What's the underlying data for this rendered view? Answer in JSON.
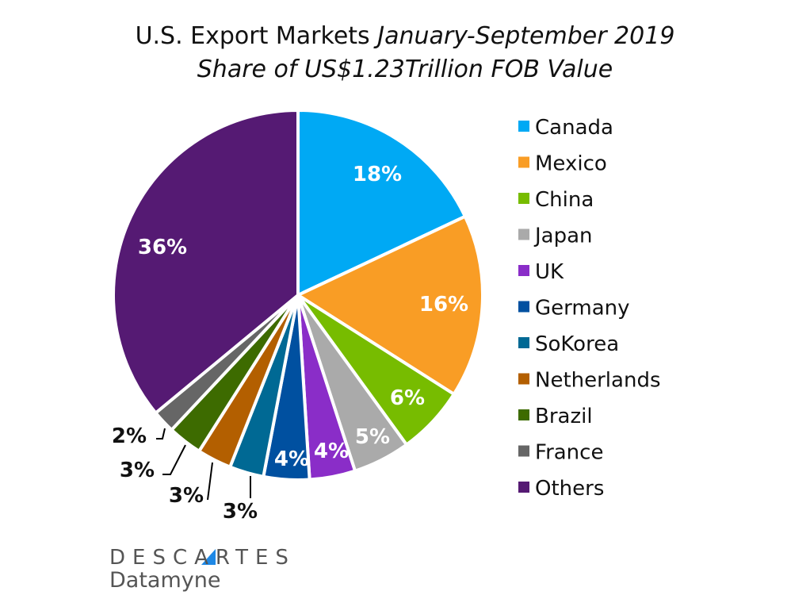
{
  "chart_data": {
    "type": "pie",
    "title": "U.S. Export Markets",
    "title_period": "January-September 2019",
    "subtitle": "Share of US$1.23Trillion FOB Value",
    "unit": "%",
    "legend_position": "right",
    "slices": [
      {
        "label": "Canada",
        "value": 18,
        "color": "#00a9f4"
      },
      {
        "label": "Mexico",
        "value": 16,
        "color": "#f99d25"
      },
      {
        "label": "China",
        "value": 6,
        "color": "#77bc00"
      },
      {
        "label": "Japan",
        "value": 5,
        "color": "#aaaaaa"
      },
      {
        "label": "UK",
        "value": 4,
        "color": "#8a2dc8"
      },
      {
        "label": "Germany",
        "value": 4,
        "color": "#0050a0"
      },
      {
        "label": "SoKorea",
        "value": 3,
        "color": "#006994"
      },
      {
        "label": "Netherlands",
        "value": 3,
        "color": "#b35f00"
      },
      {
        "label": "Brazil",
        "value": 3,
        "color": "#3d6b00"
      },
      {
        "label": "France",
        "value": 2,
        "color": "#666666"
      },
      {
        "label": "Others",
        "value": 36,
        "color": "#551a73"
      }
    ]
  },
  "logo": {
    "line1": "DESCARTES",
    "line2": "Datamyne",
    "accent": "#1e88e5"
  }
}
